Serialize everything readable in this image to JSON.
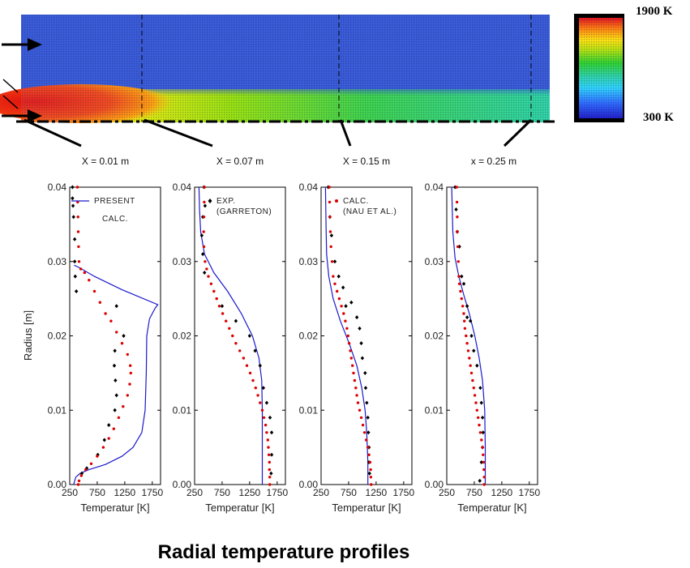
{
  "title": "Radial temperature profiles",
  "colorbar": {
    "max_label": "1900 K",
    "min_label": "300 K"
  },
  "field_view": {
    "station_labels": [
      "X = 0.01 m",
      "X = 0.07 m",
      "X = 0.15 m",
      "x = 0.25 m"
    ],
    "station_x_m": [
      0.01,
      0.07,
      0.15,
      0.25
    ],
    "colors": {
      "background": "#2a4fd6",
      "hot": "#e01010",
      "warm": "#ffd000",
      "mid": "#30d040",
      "cool": "#20d0c0"
    }
  },
  "legend": [
    {
      "line1": "PRESENT",
      "line2": "CALC.",
      "marker": "line",
      "color": "#1a1acc"
    },
    {
      "line1": "EXP.",
      "line2": "(GARRETON)",
      "marker": "diamond",
      "color": "#000000"
    },
    {
      "line1": "CALC.",
      "line2": "(NAU ET AL.)",
      "marker": "dot",
      "color": "#dd0000"
    }
  ],
  "chart_data": {
    "type": "line",
    "xlabel": "Temperatur [K]",
    "ylabel": "Radius [m]",
    "xlim": [
      250,
      1900
    ],
    "ylim": [
      0,
      0.04
    ],
    "x_ticks": [
      "250",
      "750",
      "1250",
      "1750"
    ],
    "y_ticks": [
      "0.00",
      "0.01",
      "0.02",
      "0.03",
      "0.04"
    ],
    "panels": [
      {
        "present_calc": [
          [
            320,
            0.0
          ],
          [
            360,
            0.001
          ],
          [
            440,
            0.0015
          ],
          [
            600,
            0.002
          ],
          [
            900,
            0.0027
          ],
          [
            1200,
            0.0038
          ],
          [
            1400,
            0.005
          ],
          [
            1560,
            0.007
          ],
          [
            1620,
            0.01
          ],
          [
            1640,
            0.015
          ],
          [
            1650,
            0.02
          ],
          [
            1700,
            0.0223
          ],
          [
            1800,
            0.0237
          ],
          [
            1850,
            0.0242
          ],
          [
            1200,
            0.0262
          ],
          [
            700,
            0.028
          ],
          [
            420,
            0.0292
          ],
          [
            330,
            0.0295
          ]
        ],
        "exp_garreton": [
          [
            300,
            0.04
          ],
          [
            300,
            0.0385
          ],
          [
            310,
            0.0375
          ],
          [
            320,
            0.036
          ],
          [
            340,
            0.033
          ],
          [
            340,
            0.03
          ],
          [
            350,
            0.028
          ],
          [
            370,
            0.026
          ],
          [
            1100,
            0.024
          ],
          [
            1230,
            0.02
          ],
          [
            1070,
            0.018
          ],
          [
            1060,
            0.016
          ],
          [
            1080,
            0.014
          ],
          [
            1100,
            0.012
          ],
          [
            1070,
            0.01
          ],
          [
            960,
            0.008
          ],
          [
            880,
            0.006
          ],
          [
            760,
            0.004
          ],
          [
            560,
            0.0022
          ],
          [
            470,
            0.0015
          ]
        ],
        "calc_nau": [
          [
            390,
            0.04
          ],
          [
            395,
            0.038
          ],
          [
            400,
            0.036
          ],
          [
            405,
            0.034
          ],
          [
            410,
            0.032
          ],
          [
            420,
            0.03
          ],
          [
            450,
            0.029
          ],
          [
            520,
            0.0285
          ],
          [
            600,
            0.0275
          ],
          [
            700,
            0.026
          ],
          [
            800,
            0.0245
          ],
          [
            900,
            0.023
          ],
          [
            1000,
            0.022
          ],
          [
            1100,
            0.0205
          ],
          [
            1200,
            0.019
          ],
          [
            1300,
            0.0175
          ],
          [
            1350,
            0.016
          ],
          [
            1360,
            0.015
          ],
          [
            1340,
            0.0135
          ],
          [
            1300,
            0.012
          ],
          [
            1220,
            0.0105
          ],
          [
            1140,
            0.009
          ],
          [
            1050,
            0.0075
          ],
          [
            960,
            0.0062
          ],
          [
            860,
            0.005
          ],
          [
            750,
            0.0038
          ],
          [
            640,
            0.0028
          ],
          [
            540,
            0.002
          ],
          [
            460,
            0.0012
          ],
          [
            420,
            0.0005
          ],
          [
            405,
            0.0
          ]
        ]
      },
      {
        "present_calc": [
          [
            1480,
            0.0
          ],
          [
            1480,
            0.005
          ],
          [
            1480,
            0.01
          ],
          [
            1470,
            0.014
          ],
          [
            1420,
            0.017
          ],
          [
            1300,
            0.02
          ],
          [
            1100,
            0.023
          ],
          [
            850,
            0.026
          ],
          [
            600,
            0.0285
          ],
          [
            430,
            0.031
          ],
          [
            360,
            0.034
          ],
          [
            340,
            0.037
          ],
          [
            330,
            0.04
          ]
        ],
        "exp_garreton": [
          [
            420,
            0.04
          ],
          [
            440,
            0.0375
          ],
          [
            400,
            0.036
          ],
          [
            380,
            0.0335
          ],
          [
            400,
            0.031
          ],
          [
            430,
            0.0285
          ],
          [
            750,
            0.024
          ],
          [
            1000,
            0.022
          ],
          [
            1250,
            0.02
          ],
          [
            1350,
            0.018
          ],
          [
            1440,
            0.016
          ],
          [
            1500,
            0.013
          ],
          [
            1560,
            0.011
          ],
          [
            1620,
            0.009
          ],
          [
            1650,
            0.007
          ],
          [
            1650,
            0.004
          ],
          [
            1640,
            0.0015
          ]
        ],
        "calc_nau": [
          [
            430,
            0.04
          ],
          [
            425,
            0.038
          ],
          [
            420,
            0.036
          ],
          [
            415,
            0.034
          ],
          [
            420,
            0.032
          ],
          [
            440,
            0.03
          ],
          [
            470,
            0.029
          ],
          [
            500,
            0.028
          ],
          [
            550,
            0.027
          ],
          [
            600,
            0.026
          ],
          [
            650,
            0.025
          ],
          [
            700,
            0.024
          ],
          [
            760,
            0.023
          ],
          [
            820,
            0.022
          ],
          [
            880,
            0.021
          ],
          [
            940,
            0.02
          ],
          [
            1000,
            0.019
          ],
          [
            1070,
            0.018
          ],
          [
            1140,
            0.017
          ],
          [
            1200,
            0.016
          ],
          [
            1260,
            0.015
          ],
          [
            1310,
            0.014
          ],
          [
            1360,
            0.013
          ],
          [
            1400,
            0.012
          ],
          [
            1440,
            0.011
          ],
          [
            1480,
            0.01
          ],
          [
            1510,
            0.009
          ],
          [
            1540,
            0.008
          ],
          [
            1560,
            0.007
          ],
          [
            1580,
            0.006
          ],
          [
            1590,
            0.005
          ],
          [
            1600,
            0.004
          ],
          [
            1610,
            0.003
          ],
          [
            1610,
            0.002
          ],
          [
            1615,
            0.001
          ],
          [
            1615,
            0.0
          ]
        ]
      },
      {
        "present_calc": [
          [
            1100,
            0.0
          ],
          [
            1100,
            0.003
          ],
          [
            1080,
            0.007
          ],
          [
            1050,
            0.01
          ],
          [
            990,
            0.013
          ],
          [
            900,
            0.016
          ],
          [
            760,
            0.019
          ],
          [
            600,
            0.022
          ],
          [
            470,
            0.025
          ],
          [
            390,
            0.028
          ],
          [
            350,
            0.031
          ],
          [
            340,
            0.035
          ],
          [
            330,
            0.04
          ]
        ],
        "exp_garreton": [
          [
            380,
            0.04
          ],
          [
            410,
            0.036
          ],
          [
            440,
            0.0335
          ],
          [
            500,
            0.03
          ],
          [
            570,
            0.028
          ],
          [
            650,
            0.0265
          ],
          [
            700,
            0.024
          ],
          [
            800,
            0.0245
          ],
          [
            900,
            0.0225
          ],
          [
            950,
            0.021
          ],
          [
            980,
            0.019
          ],
          [
            1000,
            0.017
          ],
          [
            1050,
            0.015
          ],
          [
            1060,
            0.013
          ],
          [
            1080,
            0.011
          ],
          [
            1100,
            0.009
          ],
          [
            1110,
            0.007
          ],
          [
            1120,
            0.005
          ],
          [
            1120,
            0.003
          ],
          [
            1130,
            0.0015
          ]
        ],
        "calc_nau": [
          [
            400,
            0.04
          ],
          [
            405,
            0.038
          ],
          [
            410,
            0.036
          ],
          [
            420,
            0.034
          ],
          [
            430,
            0.032
          ],
          [
            450,
            0.03
          ],
          [
            470,
            0.028
          ],
          [
            500,
            0.027
          ],
          [
            540,
            0.026
          ],
          [
            580,
            0.025
          ],
          [
            620,
            0.024
          ],
          [
            660,
            0.023
          ],
          [
            690,
            0.022
          ],
          [
            720,
            0.021
          ],
          [
            740,
            0.02
          ],
          [
            760,
            0.019
          ],
          [
            780,
            0.018
          ],
          [
            800,
            0.017
          ],
          [
            820,
            0.016
          ],
          [
            840,
            0.015
          ],
          [
            860,
            0.014
          ],
          [
            880,
            0.013
          ],
          [
            900,
            0.012
          ],
          [
            920,
            0.011
          ],
          [
            950,
            0.01
          ],
          [
            980,
            0.009
          ],
          [
            1010,
            0.008
          ],
          [
            1040,
            0.007
          ],
          [
            1070,
            0.006
          ],
          [
            1100,
            0.005
          ],
          [
            1120,
            0.004
          ],
          [
            1140,
            0.003
          ],
          [
            1150,
            0.002
          ],
          [
            1155,
            0.001
          ],
          [
            1160,
            0.0
          ]
        ]
      },
      {
        "present_calc": [
          [
            950,
            0.0
          ],
          [
            950,
            0.005
          ],
          [
            940,
            0.01
          ],
          [
            900,
            0.014
          ],
          [
            840,
            0.017
          ],
          [
            760,
            0.02
          ],
          [
            660,
            0.023
          ],
          [
            560,
            0.0255
          ],
          [
            470,
            0.028
          ],
          [
            400,
            0.0305
          ],
          [
            360,
            0.034
          ],
          [
            340,
            0.04
          ]
        ],
        "exp_garreton": [
          [
            400,
            0.04
          ],
          [
            420,
            0.037
          ],
          [
            440,
            0.034
          ],
          [
            480,
            0.032
          ],
          [
            520,
            0.028
          ],
          [
            560,
            0.027
          ],
          [
            620,
            0.024
          ],
          [
            620,
            0.0225
          ],
          [
            680,
            0.022
          ],
          [
            700,
            0.02
          ],
          [
            740,
            0.018
          ],
          [
            800,
            0.016
          ],
          [
            860,
            0.013
          ],
          [
            880,
            0.011
          ],
          [
            900,
            0.009
          ],
          [
            910,
            0.007
          ],
          [
            900,
            0.005
          ],
          [
            880,
            0.003
          ],
          [
            850,
            0.0005
          ]
        ],
        "calc_nau": [
          [
            430,
            0.04
          ],
          [
            435,
            0.038
          ],
          [
            440,
            0.036
          ],
          [
            445,
            0.034
          ],
          [
            450,
            0.032
          ],
          [
            460,
            0.03
          ],
          [
            470,
            0.028
          ],
          [
            480,
            0.027
          ],
          [
            500,
            0.026
          ],
          [
            520,
            0.025
          ],
          [
            540,
            0.024
          ],
          [
            560,
            0.023
          ],
          [
            570,
            0.022
          ],
          [
            580,
            0.021
          ],
          [
            600,
            0.02
          ],
          [
            620,
            0.019
          ],
          [
            640,
            0.018
          ],
          [
            660,
            0.017
          ],
          [
            680,
            0.016
          ],
          [
            700,
            0.015
          ],
          [
            720,
            0.014
          ],
          [
            740,
            0.013
          ],
          [
            760,
            0.012
          ],
          [
            780,
            0.011
          ],
          [
            800,
            0.01
          ],
          [
            820,
            0.009
          ],
          [
            840,
            0.008
          ],
          [
            860,
            0.007
          ],
          [
            880,
            0.006
          ],
          [
            900,
            0.005
          ],
          [
            910,
            0.004
          ],
          [
            920,
            0.003
          ],
          [
            925,
            0.002
          ],
          [
            930,
            0.001
          ],
          [
            930,
            0.0
          ]
        ]
      }
    ]
  }
}
